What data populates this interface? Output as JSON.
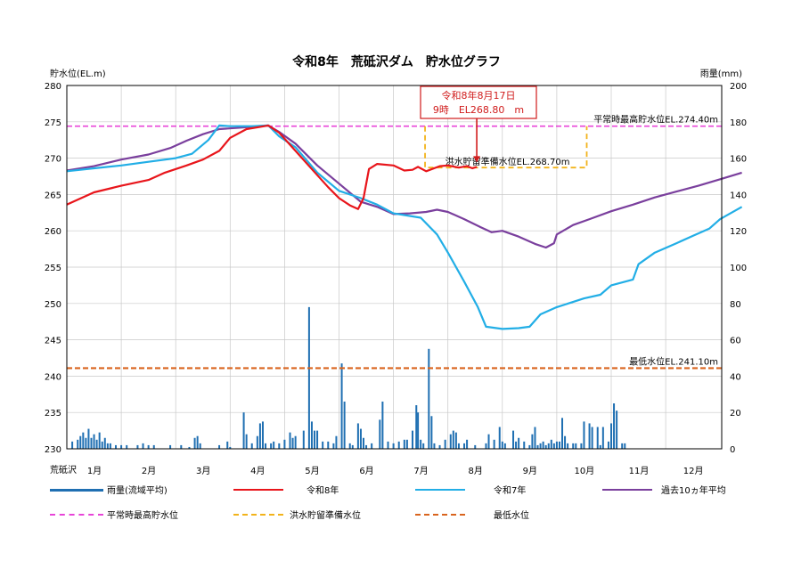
{
  "chart_data": {
    "type": "line",
    "title": "令和8年　荒砥沢ダム　貯水位グラフ",
    "ylabel": "貯水位(EL.m)",
    "y2label": "雨量(mm)",
    "ylim": [
      230,
      280
    ],
    "y2lim": [
      0,
      200
    ],
    "yticks": [
      230,
      235,
      240,
      245,
      250,
      255,
      260,
      265,
      270,
      275,
      280
    ],
    "y2ticks": [
      0,
      20,
      40,
      60,
      80,
      100,
      120,
      140,
      160,
      180,
      200
    ],
    "xlim": [
      0,
      12
    ],
    "station": "荒砥沢",
    "months": [
      "1月",
      "2月",
      "3月",
      "4月",
      "5月",
      "6月",
      "7月",
      "8月",
      "9月",
      "10月",
      "11月",
      "12月"
    ],
    "grid": true,
    "colors": {
      "rain": "#1f6fb2",
      "r8": "#e8151b",
      "r7": "#22aee6",
      "avg10": "#7a3f9d",
      "normal_max": "#e844d8",
      "flood": "#f2b31b",
      "min": "#d9641e",
      "callout": "#d01c1c"
    },
    "reference_lines": [
      {
        "key": "normal_max",
        "value": 274.4,
        "label": "平常時最高貯水位EL.274.40m"
      },
      {
        "key": "flood",
        "value": 268.7,
        "label": "洪水貯留準備水位EL.268.70m",
        "x_start": 6.58,
        "x_end": 9.55
      },
      {
        "key": "min",
        "value": 241.1,
        "label": "最低水位EL.241.10m"
      }
    ],
    "callout": {
      "line1": "令和8年8月17日",
      "line2": "9時　EL268.80　m",
      "x": 7.53,
      "y": 268.8
    },
    "series": [
      {
        "key": "r8",
        "name": "令和8年",
        "points": [
          [
            0,
            263.6
          ],
          [
            0.5,
            265.3
          ],
          [
            1,
            266.2
          ],
          [
            1.5,
            267.0
          ],
          [
            1.8,
            268.0
          ],
          [
            2.2,
            269.0
          ],
          [
            2.5,
            269.8
          ],
          [
            2.8,
            271.0
          ],
          [
            3.0,
            272.8
          ],
          [
            3.3,
            274.0
          ],
          [
            3.7,
            274.5
          ],
          [
            3.9,
            273.5
          ],
          [
            4.2,
            271.0
          ],
          [
            4.5,
            268.5
          ],
          [
            4.8,
            266.0
          ],
          [
            5.0,
            264.5
          ],
          [
            5.2,
            263.5
          ],
          [
            5.35,
            263.0
          ],
          [
            5.45,
            264.5
          ],
          [
            5.55,
            268.5
          ],
          [
            5.7,
            269.2
          ],
          [
            6.0,
            269.0
          ],
          [
            6.2,
            268.3
          ],
          [
            6.35,
            268.4
          ],
          [
            6.45,
            268.8
          ],
          [
            6.6,
            268.2
          ],
          [
            6.85,
            268.9
          ],
          [
            7.0,
            269.0
          ],
          [
            7.2,
            268.7
          ],
          [
            7.35,
            268.9
          ],
          [
            7.45,
            268.6
          ],
          [
            7.53,
            268.8
          ]
        ]
      },
      {
        "key": "r7",
        "name": "令和7年",
        "points": [
          [
            0,
            268.2
          ],
          [
            0.5,
            268.6
          ],
          [
            1,
            269.0
          ],
          [
            1.5,
            269.5
          ],
          [
            2,
            270.0
          ],
          [
            2.3,
            270.6
          ],
          [
            2.6,
            272.5
          ],
          [
            2.8,
            274.5
          ],
          [
            3.0,
            274.4
          ],
          [
            3.4,
            274.4
          ],
          [
            3.7,
            274.5
          ],
          [
            3.9,
            273.0
          ],
          [
            4.2,
            271.5
          ],
          [
            4.6,
            268.0
          ],
          [
            5.0,
            265.5
          ],
          [
            5.4,
            264.5
          ],
          [
            5.7,
            263.6
          ],
          [
            6.0,
            262.4
          ],
          [
            6.5,
            261.8
          ],
          [
            6.8,
            259.5
          ],
          [
            7.0,
            257.0
          ],
          [
            7.3,
            253.0
          ],
          [
            7.55,
            249.5
          ],
          [
            7.7,
            246.8
          ],
          [
            8.0,
            246.5
          ],
          [
            8.3,
            246.6
          ],
          [
            8.5,
            246.8
          ],
          [
            8.7,
            248.5
          ],
          [
            9.0,
            249.5
          ],
          [
            9.5,
            250.7
          ],
          [
            9.8,
            251.2
          ],
          [
            10.0,
            252.5
          ],
          [
            10.4,
            253.3
          ],
          [
            10.5,
            255.4
          ],
          [
            10.8,
            257.0
          ],
          [
            11.2,
            258.3
          ],
          [
            11.5,
            259.3
          ],
          [
            11.8,
            260.3
          ],
          [
            12,
            261.6
          ],
          [
            12.4,
            263.3
          ]
        ]
      },
      {
        "key": "avg10",
        "name": "過去10ヵ年平均",
        "points": [
          [
            0,
            268.3
          ],
          [
            0.5,
            268.9
          ],
          [
            1,
            269.8
          ],
          [
            1.5,
            270.5
          ],
          [
            1.9,
            271.4
          ],
          [
            2.2,
            272.4
          ],
          [
            2.5,
            273.3
          ],
          [
            2.8,
            274.0
          ],
          [
            3.2,
            274.2
          ],
          [
            3.7,
            274.5
          ],
          [
            3.9,
            273.6
          ],
          [
            4.2,
            272.0
          ],
          [
            4.6,
            269.0
          ],
          [
            5.0,
            266.5
          ],
          [
            5.4,
            264.0
          ],
          [
            5.7,
            263.3
          ],
          [
            6.0,
            262.3
          ],
          [
            6.3,
            262.4
          ],
          [
            6.6,
            262.6
          ],
          [
            6.8,
            262.9
          ],
          [
            7.0,
            262.6
          ],
          [
            7.3,
            261.6
          ],
          [
            7.6,
            260.5
          ],
          [
            7.8,
            259.8
          ],
          [
            8.0,
            260.0
          ],
          [
            8.3,
            259.2
          ],
          [
            8.6,
            258.2
          ],
          [
            8.8,
            257.7
          ],
          [
            8.95,
            258.3
          ],
          [
            9.0,
            259.5
          ],
          [
            9.3,
            260.8
          ],
          [
            9.6,
            261.6
          ],
          [
            10.0,
            262.7
          ],
          [
            10.4,
            263.6
          ],
          [
            10.8,
            264.6
          ],
          [
            11.2,
            265.4
          ],
          [
            11.6,
            266.2
          ],
          [
            12,
            267.1
          ],
          [
            12.4,
            268.0
          ]
        ]
      }
    ],
    "rain": [
      [
        0.1,
        4
      ],
      [
        0.2,
        5
      ],
      [
        0.25,
        7
      ],
      [
        0.3,
        9
      ],
      [
        0.35,
        6
      ],
      [
        0.4,
        11
      ],
      [
        0.45,
        6
      ],
      [
        0.5,
        8
      ],
      [
        0.55,
        5
      ],
      [
        0.6,
        9
      ],
      [
        0.65,
        4
      ],
      [
        0.7,
        6
      ],
      [
        0.75,
        3
      ],
      [
        0.8,
        3
      ],
      [
        0.9,
        2
      ],
      [
        1.0,
        2
      ],
      [
        1.1,
        2
      ],
      [
        1.3,
        2
      ],
      [
        1.4,
        3
      ],
      [
        1.5,
        2
      ],
      [
        1.6,
        2
      ],
      [
        1.9,
        2
      ],
      [
        2.1,
        2
      ],
      [
        2.25,
        1
      ],
      [
        2.35,
        6
      ],
      [
        2.4,
        7
      ],
      [
        2.45,
        3
      ],
      [
        2.8,
        2
      ],
      [
        2.95,
        4
      ],
      [
        3.0,
        1
      ],
      [
        3.25,
        20
      ],
      [
        3.3,
        8
      ],
      [
        3.4,
        3
      ],
      [
        3.5,
        7
      ],
      [
        3.55,
        14
      ],
      [
        3.6,
        15
      ],
      [
        3.65,
        3
      ],
      [
        3.75,
        3
      ],
      [
        3.8,
        4
      ],
      [
        3.9,
        3
      ],
      [
        4.0,
        5
      ],
      [
        4.1,
        9
      ],
      [
        4.15,
        6
      ],
      [
        4.2,
        7
      ],
      [
        4.35,
        10
      ],
      [
        4.45,
        78
      ],
      [
        4.5,
        15
      ],
      [
        4.55,
        10
      ],
      [
        4.6,
        10
      ],
      [
        4.7,
        4
      ],
      [
        4.8,
        4
      ],
      [
        4.9,
        3
      ],
      [
        4.95,
        7
      ],
      [
        5.05,
        47
      ],
      [
        5.1,
        26
      ],
      [
        5.2,
        3
      ],
      [
        5.25,
        2
      ],
      [
        5.35,
        14
      ],
      [
        5.4,
        11
      ],
      [
        5.45,
        6
      ],
      [
        5.5,
        2
      ],
      [
        5.6,
        3
      ],
      [
        5.75,
        16
      ],
      [
        5.8,
        26
      ],
      [
        5.9,
        4
      ],
      [
        6.0,
        3
      ],
      [
        6.1,
        4
      ],
      [
        6.2,
        5
      ],
      [
        6.25,
        5
      ],
      [
        6.35,
        10
      ],
      [
        6.42,
        24
      ],
      [
        6.45,
        20
      ],
      [
        6.5,
        5
      ],
      [
        6.55,
        3
      ],
      [
        6.65,
        55
      ],
      [
        6.7,
        18
      ],
      [
        6.75,
        3
      ],
      [
        6.85,
        2
      ],
      [
        6.95,
        5
      ],
      [
        7.05,
        8
      ],
      [
        7.1,
        10
      ],
      [
        7.15,
        9
      ],
      [
        7.2,
        3
      ],
      [
        7.3,
        3
      ],
      [
        7.35,
        5
      ],
      [
        7.5,
        2
      ],
      [
        7.7,
        3
      ],
      [
        7.75,
        8
      ],
      [
        7.85,
        5
      ],
      [
        7.95,
        12
      ],
      [
        8.0,
        4
      ],
      [
        8.05,
        3
      ],
      [
        8.2,
        10
      ],
      [
        8.25,
        4
      ],
      [
        8.3,
        6
      ],
      [
        8.4,
        4
      ],
      [
        8.5,
        2
      ],
      [
        8.55,
        8
      ],
      [
        8.6,
        12
      ],
      [
        8.65,
        2
      ],
      [
        8.7,
        3
      ],
      [
        8.75,
        4
      ],
      [
        8.8,
        2
      ],
      [
        8.85,
        3
      ],
      [
        8.9,
        5
      ],
      [
        8.95,
        3
      ],
      [
        9.0,
        4
      ],
      [
        9.05,
        4
      ],
      [
        9.1,
        17
      ],
      [
        9.15,
        7
      ],
      [
        9.2,
        3
      ],
      [
        9.3,
        3
      ],
      [
        9.35,
        3
      ],
      [
        9.45,
        3
      ],
      [
        9.5,
        15
      ],
      [
        9.6,
        14
      ],
      [
        9.65,
        12
      ],
      [
        9.75,
        12
      ],
      [
        9.8,
        2
      ],
      [
        9.85,
        12
      ],
      [
        9.95,
        4
      ],
      [
        10.0,
        14
      ],
      [
        10.05,
        25
      ],
      [
        10.1,
        21
      ],
      [
        10.2,
        3
      ],
      [
        10.25,
        3
      ]
    ]
  },
  "legend": [
    {
      "key": "rain",
      "label": "雨量(流域平均)"
    },
    {
      "key": "r8",
      "label": "令和8年"
    },
    {
      "key": "r7",
      "label": "令和7年"
    },
    {
      "key": "avg10",
      "label": "過去10ヵ年平均"
    },
    {
      "key": "normal_max",
      "label": "平常時最高貯水位"
    },
    {
      "key": "flood",
      "label": "洪水貯留準備水位"
    },
    {
      "key": "min",
      "label": "最低水位"
    }
  ]
}
